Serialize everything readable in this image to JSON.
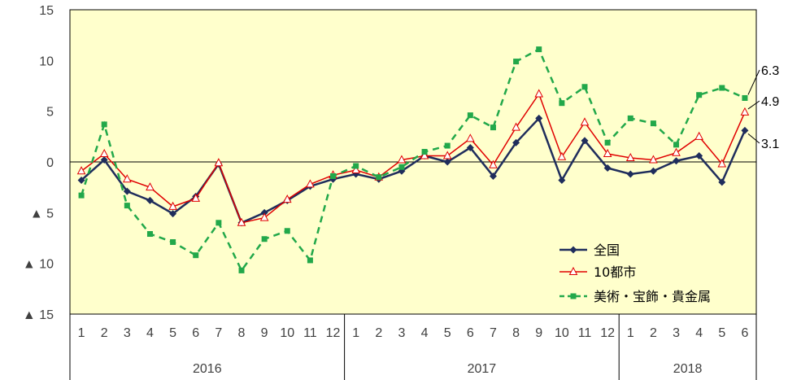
{
  "chart_data": {
    "type": "line",
    "ylim": [
      -15,
      15
    ],
    "y_ticks": [
      {
        "value": 15,
        "label": "15"
      },
      {
        "value": 10,
        "label": "10"
      },
      {
        "value": 5,
        "label": "5"
      },
      {
        "value": 0,
        "label": "0"
      },
      {
        "value": -5,
        "label": "▲ 5"
      },
      {
        "value": -10,
        "label": "▲ 10"
      },
      {
        "value": -15,
        "label": "▲ 15"
      }
    ],
    "months": [
      "1",
      "2",
      "3",
      "4",
      "5",
      "6",
      "7",
      "8",
      "9",
      "10",
      "11",
      "12",
      "1",
      "2",
      "3",
      "4",
      "5",
      "6",
      "7",
      "8",
      "9",
      "10",
      "11",
      "12",
      "1",
      "2",
      "3",
      "4",
      "5",
      "6"
    ],
    "years": [
      {
        "label": "2016",
        "count": 12
      },
      {
        "label": "2017",
        "count": 12
      },
      {
        "label": "2018",
        "count": 6
      }
    ],
    "grid": false,
    "plot_background": "#FFFFCC",
    "legend_position": "bottom-right",
    "series": [
      {
        "name": "全国",
        "color": "#1F2D5C",
        "marker": "diamond",
        "values": [
          -1.8,
          0.2,
          -2.9,
          -3.8,
          -5.1,
          -3.4,
          -0.2,
          -6.0,
          -5.0,
          -3.8,
          -2.4,
          -1.7,
          -1.2,
          -1.7,
          -0.9,
          0.6,
          0.0,
          1.4,
          -1.4,
          1.9,
          4.3,
          -1.8,
          2.1,
          -0.6,
          -1.2,
          -0.9,
          0.1,
          0.6,
          -2.0,
          3.1
        ]
      },
      {
        "name": "10都市",
        "color": "#E00000",
        "marker": "triangle",
        "values": [
          -0.9,
          0.8,
          -1.7,
          -2.5,
          -4.4,
          -3.6,
          -0.1,
          -6.0,
          -5.5,
          -3.7,
          -2.2,
          -1.3,
          -0.8,
          -1.5,
          0.2,
          0.6,
          0.6,
          2.3,
          -0.3,
          3.4,
          6.7,
          0.5,
          3.9,
          0.8,
          0.4,
          0.2,
          0.9,
          2.5,
          -0.2,
          4.9
        ]
      },
      {
        "name": "美術・宝飾・貴金属",
        "color": "#22A84A",
        "marker": "square",
        "values": [
          -3.3,
          3.7,
          -4.3,
          -7.1,
          -7.9,
          -9.2,
          -6.0,
          -10.7,
          -7.6,
          -6.8,
          -9.7,
          -1.4,
          -0.4,
          -1.5,
          -0.5,
          1.0,
          1.6,
          4.6,
          3.4,
          9.9,
          11.1,
          5.8,
          7.4,
          1.9,
          4.3,
          3.8,
          1.7,
          6.6,
          7.3,
          6.3
        ]
      }
    ],
    "annotations": [
      "6.3",
      "4.9",
      "3.1"
    ]
  }
}
